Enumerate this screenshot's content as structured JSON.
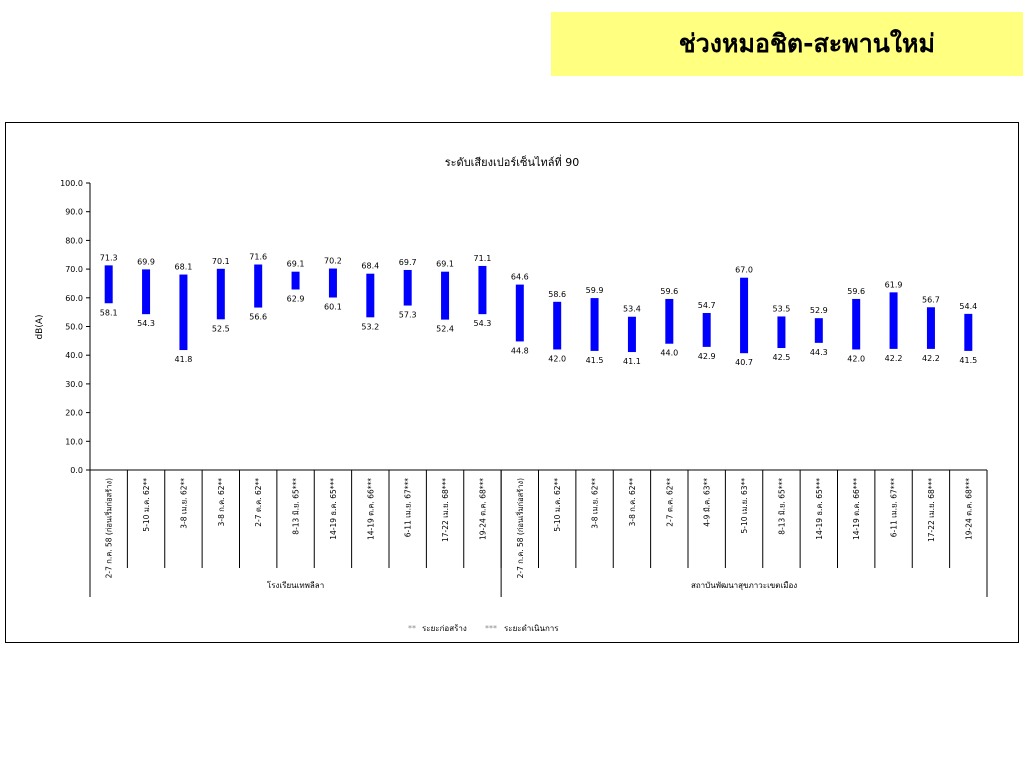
{
  "slide_title": "ช่วงหมอชิต-สะพานใหม่",
  "chart_data": {
    "type": "bar",
    "subtype": "floating-range",
    "title": "ระดับเสียงเปอร์เซ็นไทล์ที่ 90",
    "ylabel": "dB(A)",
    "ylim": [
      0,
      100
    ],
    "yticks": [
      "0.0",
      "10.0",
      "20.0",
      "30.0",
      "40.0",
      "50.0",
      "60.0",
      "70.0",
      "80.0",
      "90.0",
      "100.0"
    ],
    "bar_color": "#0000ff",
    "groups": [
      {
        "name": "โรงเรียนเทพลีลา",
        "categories": [
          "2-7 ก.ค. 58 (ก่อนเริ่มก่อสร้าง)",
          "5-10 ม.ค. 62**",
          "3-8 เม.ย. 62**",
          "3-8 ก.ค. 62**",
          "2-7 ต.ค. 62**",
          "8-13 มิ.ย. 65***",
          "14-19 ธ.ค. 65***",
          "14-19 ต.ค. 66***",
          "6-11 เม.ย. 67***",
          "17-22 เม.ย. 68***",
          "19-24 ต.ค. 68***"
        ],
        "max": [
          71.3,
          69.9,
          68.1,
          70.1,
          71.6,
          69.1,
          70.2,
          68.4,
          69.7,
          69.1,
          71.1
        ],
        "min": [
          58.1,
          54.3,
          41.8,
          52.5,
          56.6,
          62.9,
          60.1,
          53.2,
          57.3,
          52.4,
          54.3
        ]
      },
      {
        "name": "สถาบันพัฒนาสุขภาวะเขตเมือง",
        "categories": [
          "2-7 ก.ค. 58 (ก่อนเริ่มก่อสร้าง)",
          "5-10 ม.ค. 62**",
          "3-8 เม.ย. 62**",
          "3-8 ก.ค. 62**",
          "2-7 ต.ค. 62**",
          "4-9 มี.ค. 63**",
          "5-10 เม.ย. 63**",
          "8-13 มิ.ย. 65***",
          "14-19 ธ.ค. 65***",
          "14-19 ต.ค. 66***",
          "6-11 เม.ย. 67***",
          "17-22 เม.ย. 68***",
          "19-24 ต.ค. 68***"
        ],
        "max": [
          64.6,
          58.6,
          59.9,
          53.4,
          59.6,
          54.7,
          67.0,
          53.5,
          52.9,
          59.6,
          61.9,
          56.7,
          54.4
        ],
        "min": [
          44.8,
          42.0,
          41.5,
          41.1,
          44.0,
          42.9,
          40.7,
          42.5,
          44.3,
          42.0,
          42.2,
          42.2,
          41.5
        ]
      }
    ],
    "legend": [
      {
        "marker": "**",
        "label": "ระยะก่อสร้าง"
      },
      {
        "marker": "***",
        "label": "ระยะดำเนินการ"
      }
    ],
    "legend_position": "bottom",
    "grid": false
  }
}
